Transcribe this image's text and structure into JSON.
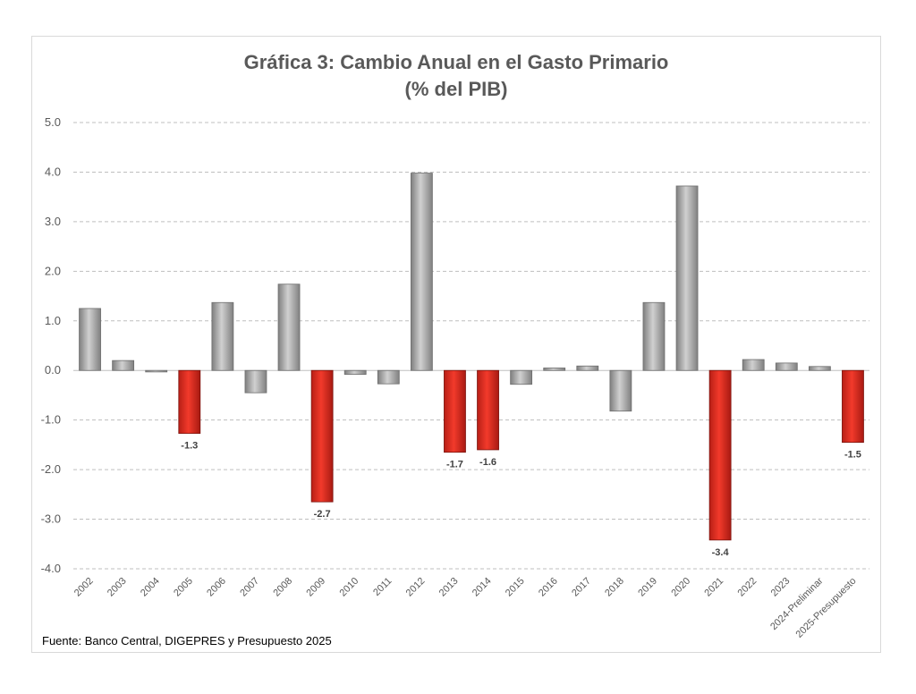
{
  "chart_data": {
    "type": "bar",
    "title_line1": "Gráfica 3: Cambio Anual en el Gasto Primario",
    "title_line2": "(% del PIB)",
    "source": "Fuente: Banco Central, DIGEPRES y Presupuesto 2025",
    "ylim": [
      -4.0,
      5.0
    ],
    "yticks": [
      "5.0",
      "4.0",
      "3.0",
      "2.0",
      "1.0",
      "0.0",
      "-1.0",
      "-2.0",
      "-3.0",
      "-4.0"
    ],
    "grid": true,
    "categories": [
      "2002",
      "2003",
      "2004",
      "2005",
      "2006",
      "2007",
      "2008",
      "2009",
      "2010",
      "2011",
      "2012",
      "2013",
      "2014",
      "2015",
      "2016",
      "2017",
      "2018",
      "2019",
      "2020",
      "2021",
      "2022",
      "2023",
      "2024-Preliminar",
      "2025-Presupuesto"
    ],
    "values": [
      1.25,
      0.2,
      -0.03,
      -1.27,
      1.37,
      -0.45,
      1.74,
      -2.65,
      -0.08,
      -0.27,
      3.98,
      -1.65,
      -1.6,
      -0.28,
      0.05,
      0.09,
      -0.82,
      1.37,
      3.72,
      -3.42,
      0.22,
      0.15,
      0.08,
      -1.45
    ],
    "highlighted": [
      false,
      false,
      false,
      true,
      false,
      false,
      false,
      true,
      false,
      false,
      false,
      true,
      true,
      false,
      false,
      false,
      false,
      false,
      false,
      true,
      false,
      false,
      false,
      true
    ],
    "data_labels": [
      "",
      "",
      "",
      "-1.3",
      "",
      "",
      "",
      "-2.7",
      "",
      "",
      "",
      "-1.7",
      "-1.6",
      "",
      "",
      "",
      "",
      "",
      "",
      "-3.4",
      "",
      "",
      "",
      "-1.5"
    ],
    "colors": {
      "default": "#a6a6a6",
      "highlight": "#e03123",
      "grid": "#bfbfbf",
      "axis_text": "#595959"
    }
  }
}
